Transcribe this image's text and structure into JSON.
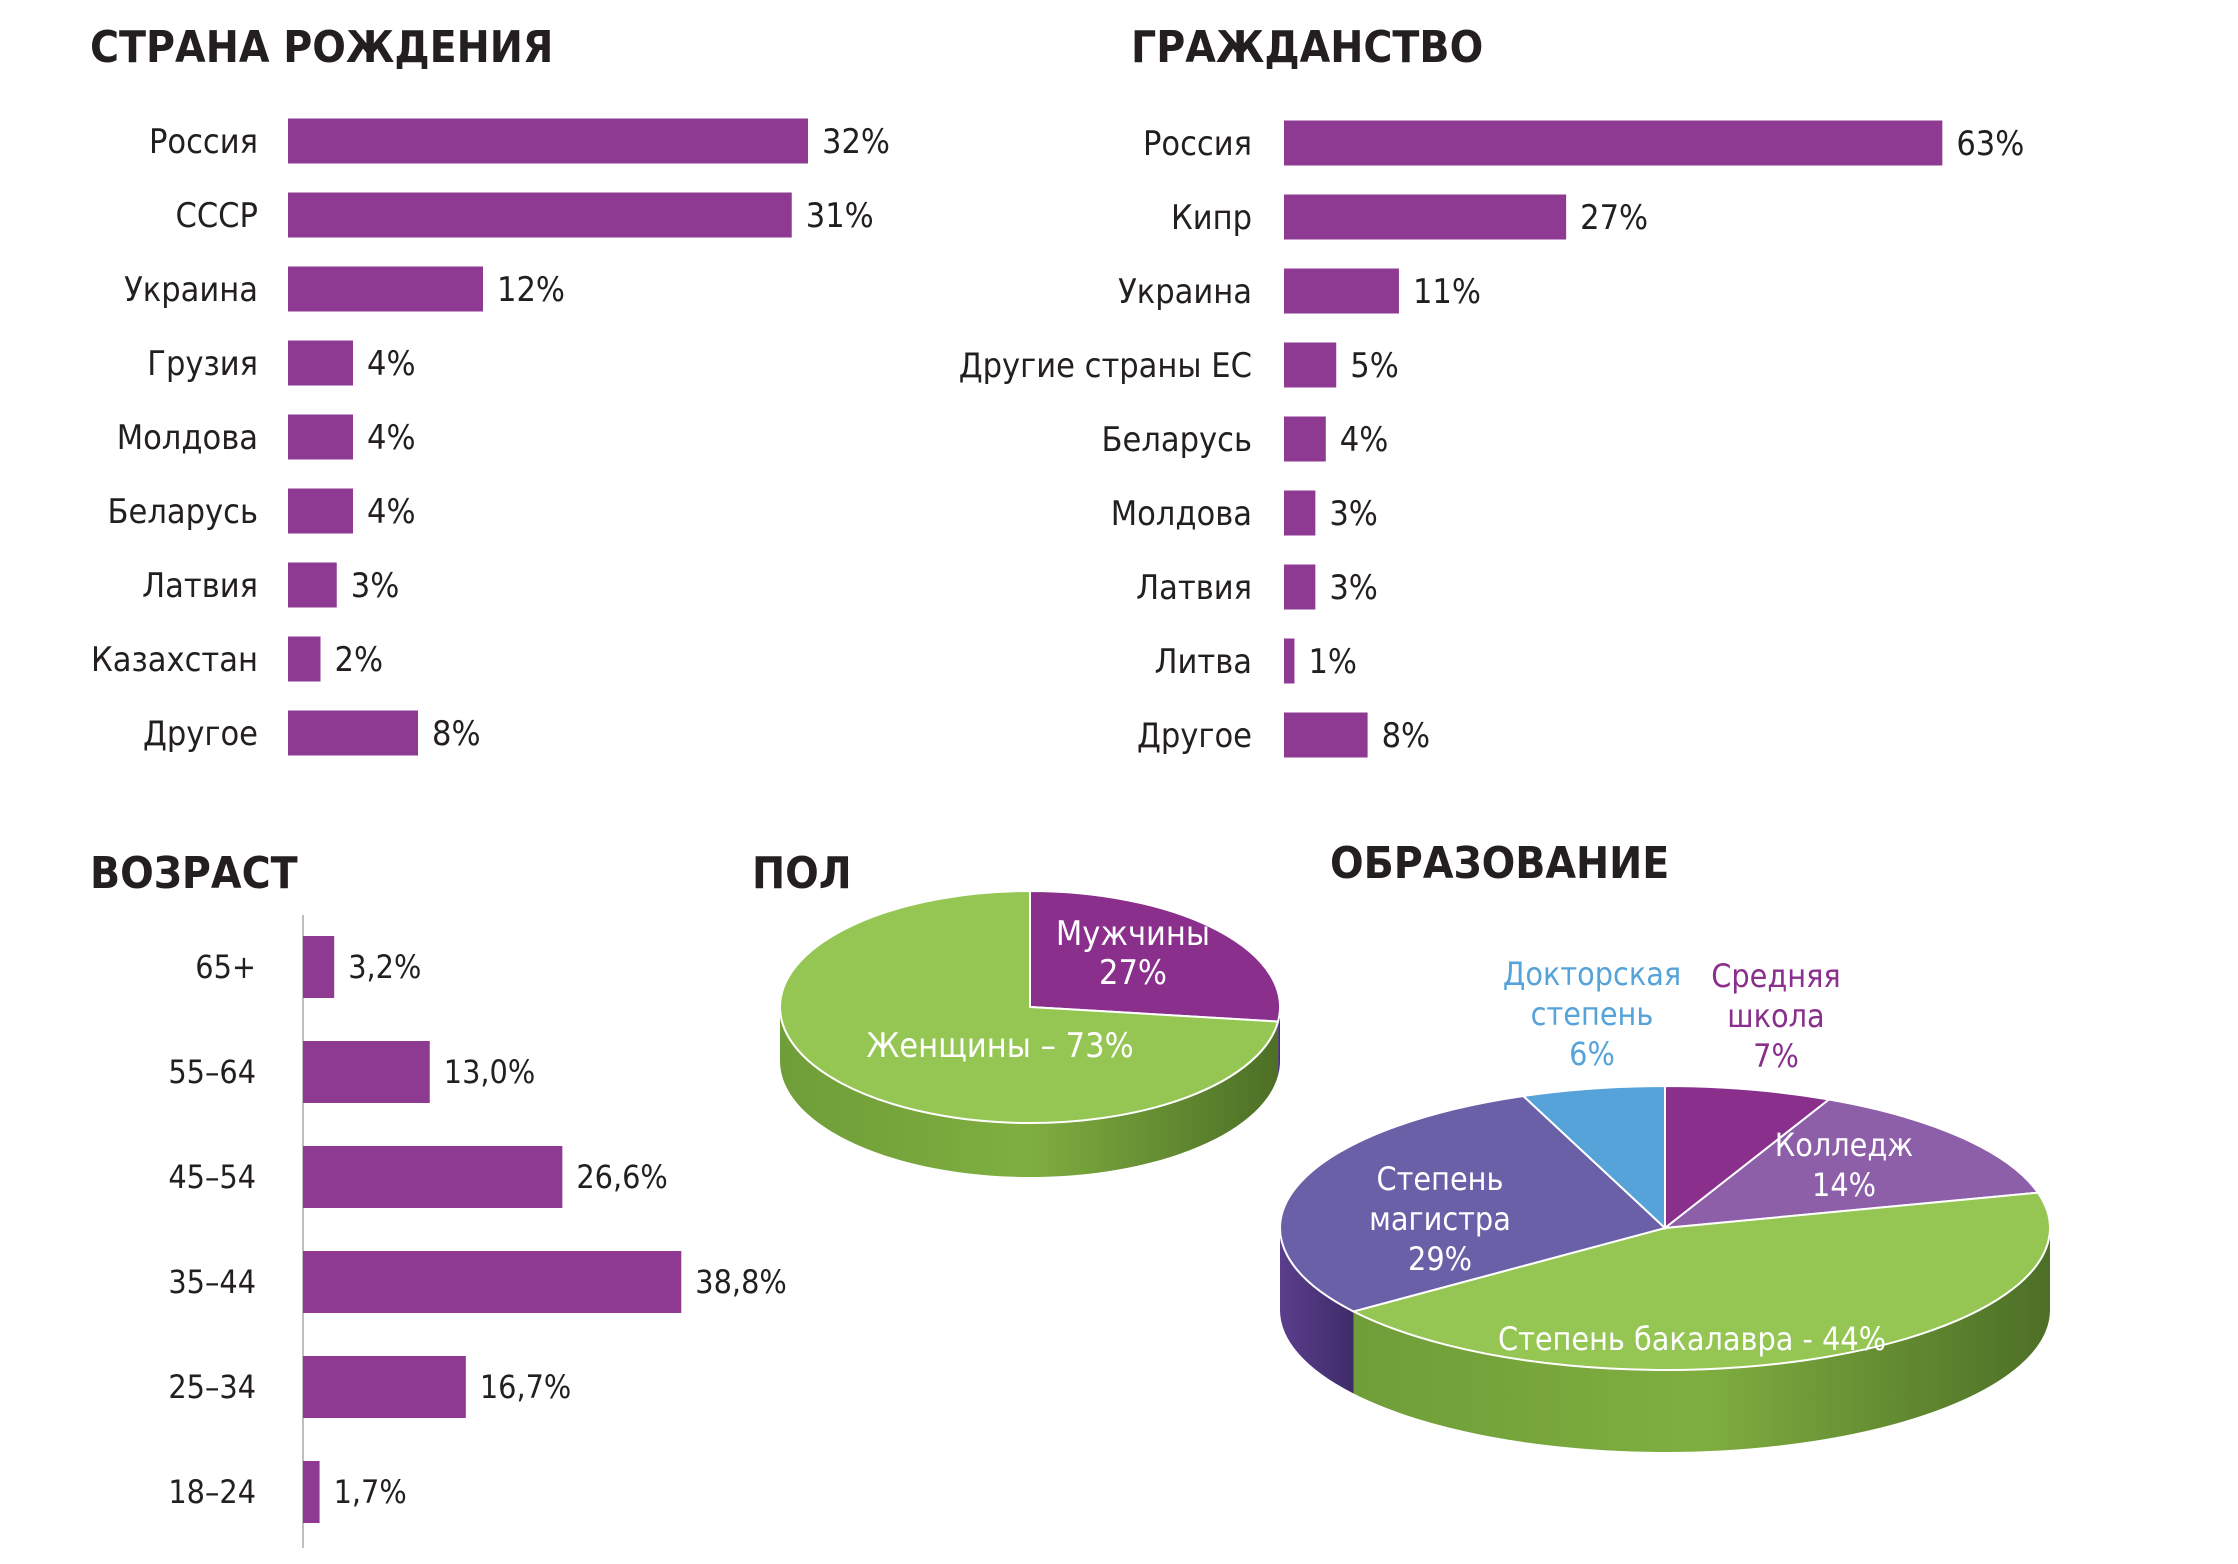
{
  "colors": {
    "bar": "#8f3a92",
    "text": "#231f20",
    "men": "#8a2f8c",
    "women": "#95c653",
    "doctorate": "#55a3d9",
    "high_school": "#8a2f8c",
    "college": "#8d5fa8",
    "master": "#6a60a8",
    "bachelor": "#95c653"
  },
  "chart_data": [
    {
      "type": "bar",
      "orientation": "horizontal",
      "title": "СТРАНА РОЖДЕНИЯ",
      "categories": [
        "Россия",
        "СССР",
        "Украина",
        "Грузия",
        "Молдова",
        "Беларусь",
        "Латвия",
        "Казахстан",
        "Другое"
      ],
      "values": [
        32,
        31,
        12,
        4,
        4,
        4,
        3,
        2,
        8
      ],
      "labels": [
        "32%",
        "31%",
        "12%",
        "4%",
        "4%",
        "4%",
        "3%",
        "2%",
        "8%"
      ],
      "unit": "%"
    },
    {
      "type": "bar",
      "orientation": "horizontal",
      "title": "ГРАЖДАНСТВО",
      "categories": [
        "Россия",
        "Кипр",
        "Украина",
        "Другие страны ЕС",
        "Беларусь",
        "Молдова",
        "Латвия",
        "Литва",
        "Другое"
      ],
      "values": [
        63,
        27,
        11,
        5,
        4,
        3,
        3,
        1,
        8
      ],
      "labels": [
        "63%",
        "27%",
        "11%",
        "5%",
        "4%",
        "3%",
        "3%",
        "1%",
        "8%"
      ],
      "unit": "%"
    },
    {
      "type": "bar",
      "orientation": "horizontal",
      "title": "ВОЗРАСТ",
      "categories": [
        "65+",
        "55–64",
        "45–54",
        "35–44",
        "25–34",
        "18–24"
      ],
      "values": [
        3.2,
        13.0,
        26.6,
        38.8,
        16.7,
        1.7
      ],
      "labels": [
        "3,2%",
        "13,0%",
        "26,6%",
        "38,8%",
        "16,7%",
        "1,7%"
      ],
      "unit": "%"
    },
    {
      "type": "pie",
      "title": "ПОЛ",
      "slices": [
        {
          "name": "Мужчины",
          "value": 27,
          "label": "27%"
        },
        {
          "name": "Женщины",
          "value": 73,
          "label": "Женщины – 73%"
        }
      ]
    },
    {
      "type": "pie",
      "title": "ОБРАЗОВАНИЕ",
      "slices": [
        {
          "name": "Средняя школа",
          "value": 7,
          "label_lines": [
            "Средняя",
            "школа",
            "7%"
          ]
        },
        {
          "name": "Колледж",
          "value": 14,
          "label_lines": [
            "Колледж",
            "14%"
          ]
        },
        {
          "name": "Степень бакалавра",
          "value": 44,
          "label_lines": [
            "Степень бакалавра - 44%"
          ]
        },
        {
          "name": "Степень магистра",
          "value": 29,
          "label_lines": [
            "Степень",
            "магистра",
            "29%"
          ]
        },
        {
          "name": "Докторская степень",
          "value": 6,
          "label_lines": [
            "Докторская",
            "степень",
            "6%"
          ]
        }
      ]
    }
  ]
}
